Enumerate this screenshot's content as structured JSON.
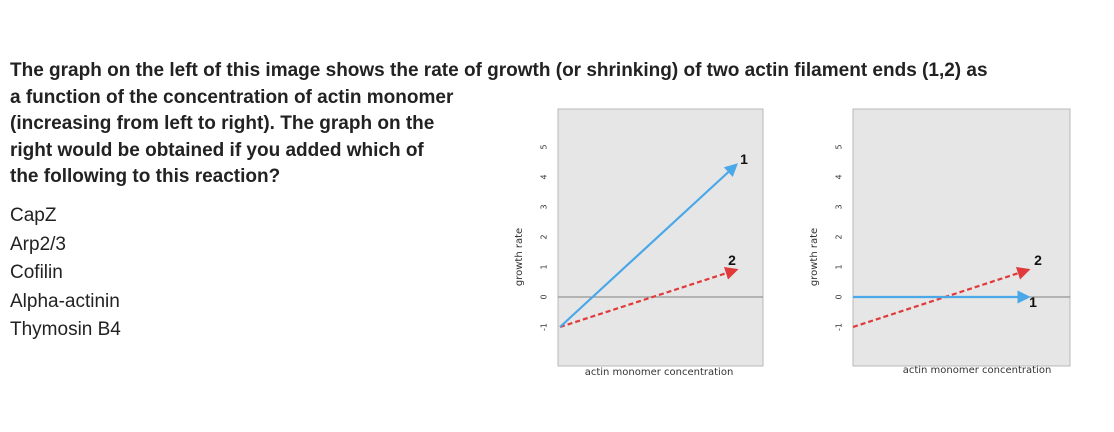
{
  "question": {
    "lines": [
      "The graph on the left of this image shows the rate of growth (or shrinking) of two actin filament ends (1,2) as",
      "a function of the concentration of actin monomer",
      "(increasing from left to right). The graph on the",
      "right would be obtained if you added which of",
      "the following to this reaction?"
    ]
  },
  "options": [
    "CapZ",
    "Arp2/3",
    "Cofilin",
    "Alpha-actinin",
    "Thymosin B4"
  ],
  "colors": {
    "series1": "#4aa8e8",
    "series2": "#e03a3a",
    "plot_bg": "#e6e6e6",
    "zero_line": "#808080"
  },
  "chart_data": [
    {
      "type": "line",
      "xlabel": "actin monomer concentration",
      "ylabel": "growth rate",
      "ylim": [
        -1,
        5
      ],
      "yticks": [
        "5",
        "4",
        "3",
        "2",
        "1",
        "0",
        "-1"
      ],
      "grid": false,
      "series": [
        {
          "name": "1",
          "style": "solid",
          "x": [
            0,
            1
          ],
          "y": [
            -1,
            4.4
          ]
        },
        {
          "name": "2",
          "style": "dashed",
          "x": [
            0,
            1
          ],
          "y": [
            -1,
            0.9
          ]
        }
      ]
    },
    {
      "type": "line",
      "xlabel": "actin monomer concentration",
      "ylabel": "growth rate",
      "ylim": [
        -1,
        5
      ],
      "yticks": [
        "5",
        "4",
        "3",
        "2",
        "1",
        "0",
        "-1"
      ],
      "grid": false,
      "series": [
        {
          "name": "1",
          "style": "solid",
          "x": [
            0,
            1
          ],
          "y": [
            0,
            0
          ]
        },
        {
          "name": "2",
          "style": "dashed",
          "x": [
            0,
            1
          ],
          "y": [
            -1,
            0.9
          ]
        }
      ]
    }
  ]
}
